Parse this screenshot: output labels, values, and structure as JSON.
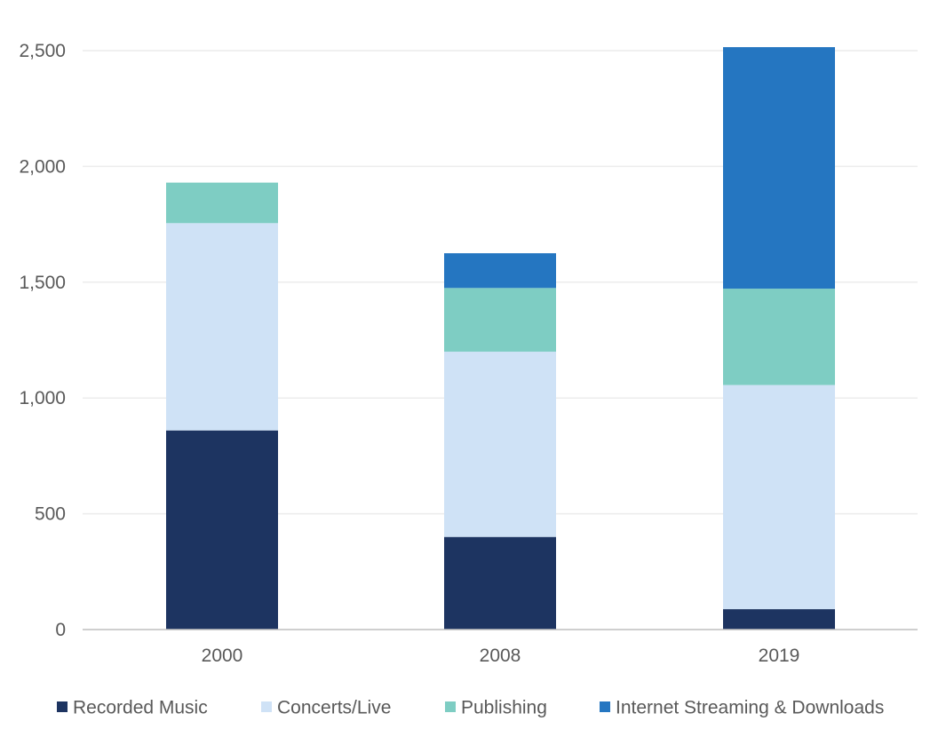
{
  "chart_data": {
    "type": "bar",
    "stacked": true,
    "categories": [
      "2000",
      "2008",
      "2019"
    ],
    "series": [
      {
        "name": "Recorded Music",
        "color": "#1d3461",
        "values": [
          860,
          400,
          88
        ]
      },
      {
        "name": "Concerts/Live",
        "color": "#cfe2f6",
        "values": [
          895,
          800,
          968
        ]
      },
      {
        "name": "Publishing",
        "color": "#7ecdc3",
        "values": [
          175,
          275,
          416
        ]
      },
      {
        "name": "Internet Streaming & Downloads",
        "color": "#2576c1",
        "values": [
          0,
          150,
          1043
        ]
      }
    ],
    "yticks": [
      "0",
      "500",
      "1,000",
      "1,500",
      "2,000",
      "2,500"
    ],
    "ytick_values": [
      0,
      500,
      1000,
      1500,
      2000,
      2500
    ],
    "ylim": [
      0,
      2500
    ],
    "title": "",
    "xlabel": "",
    "ylabel": "",
    "grid": true,
    "legend_position": "bottom"
  }
}
